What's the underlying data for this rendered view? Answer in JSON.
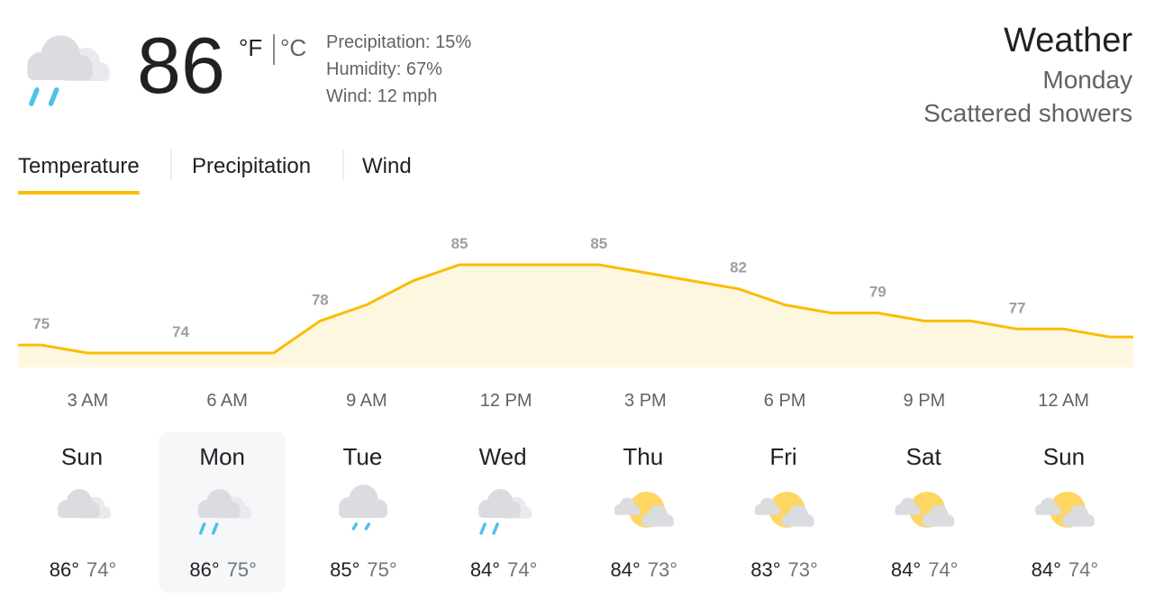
{
  "current": {
    "temperature": "86",
    "units": [
      "°F",
      "°C"
    ],
    "details": [
      "Precipitation: 15%",
      "Humidity: 67%",
      "Wind: 12 mph"
    ],
    "icon": "showers"
  },
  "header": {
    "title": "Weather",
    "day": "Monday",
    "condition": "Scattered showers"
  },
  "tabs": {
    "items": [
      "Temperature",
      "Precipitation",
      "Wind"
    ],
    "active": 0
  },
  "chart_data": {
    "type": "area",
    "categories": [
      null,
      "3 AM",
      null,
      null,
      "6 AM",
      null,
      null,
      "9 AM",
      null,
      null,
      "12 PM",
      null,
      null,
      "3 PM",
      null,
      null,
      "6 PM",
      null,
      null,
      "9 PM",
      null,
      null,
      "12 AM",
      null
    ],
    "values": [
      75,
      74,
      74,
      74,
      74,
      74,
      78,
      80,
      83,
      85,
      85,
      85,
      85,
      84,
      83,
      82,
      80,
      79,
      79,
      78,
      78,
      77,
      77,
      76
    ],
    "color": "#fbbc04"
  },
  "days": {
    "items": [
      {
        "name": "Sun",
        "icon": "cloudy",
        "high": "86°",
        "low": "74°"
      },
      {
        "name": "Mon",
        "icon": "showers",
        "high": "86°",
        "low": "75°"
      },
      {
        "name": "Tue",
        "icon": "rain",
        "high": "85°",
        "low": "75°"
      },
      {
        "name": "Wed",
        "icon": "showers",
        "high": "84°",
        "low": "74°"
      },
      {
        "name": "Thu",
        "icon": "partly-cloudy",
        "high": "84°",
        "low": "73°"
      },
      {
        "name": "Fri",
        "icon": "partly-cloudy",
        "high": "83°",
        "low": "73°"
      },
      {
        "name": "Sat",
        "icon": "partly-cloudy",
        "high": "84°",
        "low": "74°"
      },
      {
        "name": "Sun",
        "icon": "partly-cloudy",
        "high": "84°",
        "low": "74°"
      }
    ],
    "selected": 1
  }
}
